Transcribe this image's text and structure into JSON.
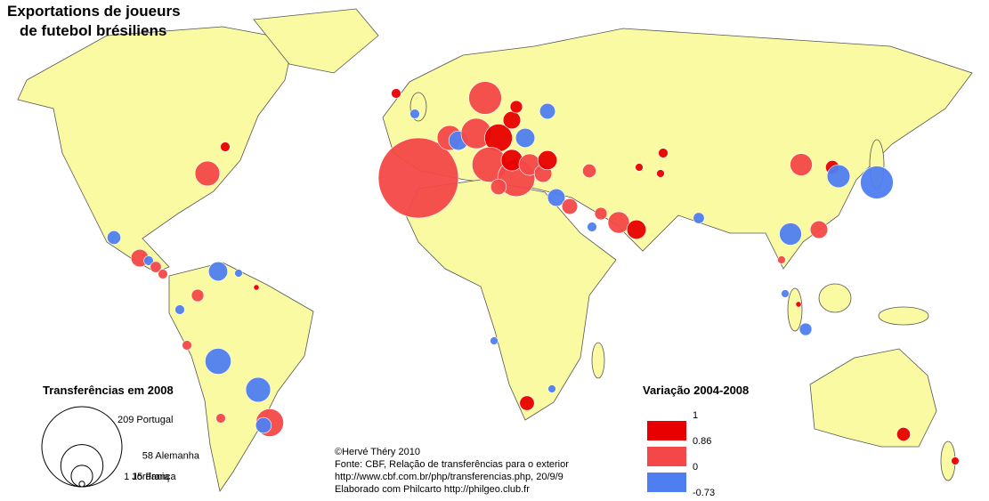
{
  "map": {
    "title_lines": [
      "Exportations de joueurs",
      "de futebol brésiliens"
    ],
    "size_legend": {
      "title": "Transferências em 2008",
      "items": [
        {
          "value": 209,
          "label": "Portugal"
        },
        {
          "value": 58,
          "label": "Alemanha"
        },
        {
          "value": 15,
          "label": "França"
        },
        {
          "value": 1,
          "label": "Jordania"
        }
      ]
    },
    "color_legend": {
      "title": "Variação 2004-2008",
      "breaks": [
        1,
        0.86,
        0,
        -0.73
      ],
      "colors": [
        "#e80000",
        "#f44848",
        "#4f7ef0"
      ]
    },
    "credits": [
      "©Hervé Théry 2010",
      "Fonte: CBF, Relação de transferências para o exterior",
      "http://www.cbf.com.br/php/transferencias.php, 20/9/9",
      "Elaborado com Philcarto http://philgeo.club.fr"
    ],
    "bubbles": {
      "transfers": [
        209,
        35,
        20,
        12,
        30,
        25,
        10,
        12,
        40,
        45,
        15,
        15,
        10,
        8,
        8,
        5,
        3,
        6,
        10,
        8,
        15,
        12,
        5,
        3,
        3,
        2,
        2,
        16,
        6,
        17,
        35,
        16,
        10,
        4,
        2,
        2,
        1,
        5,
        6,
        2,
        7,
        2,
        2,
        3,
        20,
        6,
        10,
        3,
        4,
        3,
        12,
        2,
        1,
        5,
        3,
        3,
        22,
        20,
        25,
        8,
        3,
        3,
        12
      ],
      "variation": [
        0.5,
        0.5,
        0.5,
        -0.3,
        0.5,
        0.9,
        0.9,
        -0.3,
        0.5,
        0.5,
        0.9,
        0.5,
        0.5,
        0.5,
        -0.3,
        0.9,
        0.9,
        0.5,
        -0.3,
        0.5,
        0.5,
        0.9,
        0.5,
        -0.3,
        0.9,
        0.9,
        0.9,
        0.5,
        0.9,
        -0.3,
        -0.3,
        -0.3,
        0.5,
        -0.3,
        0.5,
        -0.3,
        0.9,
        -0.3,
        0.9,
        0.9,
        0.9,
        -0.3,
        -0.3,
        0.9,
        0.5,
        -0.3,
        0.5,
        -0.3,
        0.5,
        0.5,
        -0.3,
        -0.3,
        0.9,
        0.5,
        -0.3,
        0.5,
        -0.3,
        -0.3,
        0.5,
        -0.3,
        0.5,
        -0.3,
        0.9
      ]
    }
  }
}
